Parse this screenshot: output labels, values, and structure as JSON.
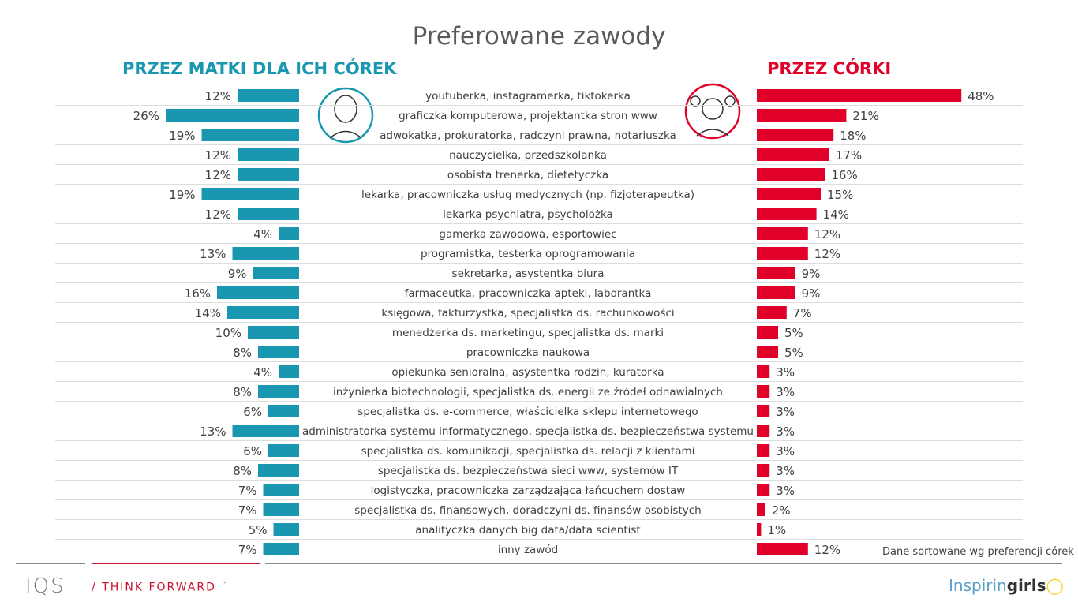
{
  "chart_data": {
    "type": "bar",
    "title": "Preferowane zawody",
    "left_series": {
      "name": "PRZEZ MATKI DLA ICH CÓREK",
      "color": "#1a97b0"
    },
    "right_series": {
      "name": "PRZEZ CÓRKI",
      "color": "#e0002a"
    },
    "note": "Dane sortowane wg preferencji córek",
    "categories": [
      "youtuberka, instagramerka, tiktokerka",
      "graficzka komputerowa, projektantka stron www",
      "adwokatka, prokuratorka, radczyni prawna, notariuszka",
      "nauczycielka, przedszkolanka",
      "osobista trenerka, dietetyczka",
      "lekarka, pracowniczka usług medycznych (np. fizjoterapeutka)",
      "lekarka psychiatra, psycholożka",
      "gamerka zawodowa, esportowiec",
      "programistka, testerka oprogramowania",
      "sekretarka, asystentka biura",
      "farmaceutka, pracowniczka apteki, laborantka",
      "księgowa, fakturzystka, specjalistka ds. rachunkowości",
      "menedżerka ds. marketingu, specjalistka ds. marki",
      "pracowniczka naukowa",
      "opiekunka senioralna, asystentka rodzin, kuratorka",
      "inżynierka biotechnologii, specjalistka ds. energii ze źródeł odnawialnych",
      "specjalistka ds. e-commerce, właścicielka sklepu internetowego",
      "administratorka systemu informatycznego, specjalistka ds. bezpieczeństwa systemu",
      "specjalistka ds. komunikacji, specjalistka ds. relacji z klientami",
      "specjalistka ds. bezpieczeństwa sieci www, systemów IT",
      "logistyczka, pracowniczka zarządzająca łańcuchem dostaw",
      "specjalistka ds. finansowych, doradczyni ds. finansów osobistych",
      "analityczka danych big data/data scientist",
      "inny zawód"
    ],
    "mothers": [
      12,
      26,
      19,
      12,
      12,
      19,
      12,
      4,
      13,
      9,
      16,
      14,
      10,
      8,
      4,
      8,
      6,
      13,
      6,
      8,
      7,
      7,
      5,
      7
    ],
    "daughters": [
      48,
      21,
      18,
      17,
      16,
      15,
      14,
      12,
      12,
      9,
      9,
      7,
      5,
      5,
      3,
      3,
      3,
      3,
      3,
      3,
      3,
      2,
      1,
      12
    ],
    "unit": "%"
  },
  "footer": {
    "logo": "IQS",
    "tagline": "THINK FORWARD",
    "tm": "™",
    "brand_light": "Inspirin",
    "brand_bold": "girls"
  }
}
